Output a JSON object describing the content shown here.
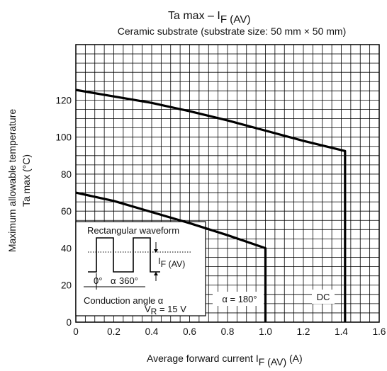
{
  "chart_data": {
    "type": "line",
    "title": "Ta max – I",
    "title_sub": "F (AV)",
    "subtitle": "Ceramic substrate (substrate size: 50 mm × 50 mm)",
    "xlabel": "Average forward current",
    "xlabel_sym": "I",
    "xlabel_sub": "F (AV)",
    "xlabel_unit": "(A)",
    "ylabel_line1": "Maximum allowable temperature",
    "ylabel_line2": "Ta max    (°C)",
    "xlim": [
      0,
      1.6
    ],
    "ylim": [
      0,
      150
    ],
    "x_ticks": [
      "0",
      "0.2",
      "0.4",
      "0.6",
      "0.8",
      "1.0",
      "1.2",
      "1.4",
      "1.6"
    ],
    "y_ticks": [
      "0",
      "20",
      "40",
      "60",
      "80",
      "100",
      "120"
    ],
    "grid": true,
    "series": [
      {
        "name": "DC",
        "x": [
          0,
          0.2,
          0.4,
          0.6,
          0.8,
          1.0,
          1.2,
          1.42,
          1.42
        ],
        "y": [
          125.5,
          122,
          118.5,
          114,
          109,
          103.5,
          98,
          92.5,
          0
        ]
      },
      {
        "name": "α = 180°",
        "x": [
          0,
          0.2,
          0.4,
          0.6,
          0.8,
          1.0,
          1.0
        ],
        "y": [
          70,
          65.5,
          59.5,
          53.5,
          47,
          40,
          0
        ]
      }
    ],
    "annotations": {
      "inset_title": "Rectangular waveform",
      "inset_if_sym": "I",
      "inset_if_sub": "F (AV)",
      "inset_0deg": "0°",
      "inset_alpha": "α",
      "inset_360": "360°",
      "inset_conduction": "Conduction angle α",
      "inset_vr_sym": "V",
      "inset_vr_sub": "R",
      "inset_vr_val": "= 15 V",
      "label_180": "α = 180°",
      "label_dc": "DC"
    }
  }
}
